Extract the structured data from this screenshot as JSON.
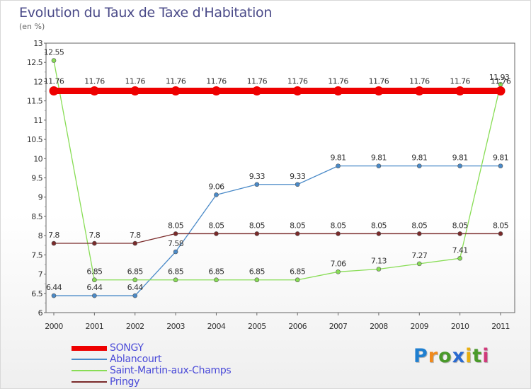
{
  "title": "Evolution du Taux de Taxe d'Habitation",
  "unit_label": "(en %)",
  "logo": {
    "text": "Proxiti",
    "letter_colors": [
      "#1f7fd0",
      "#f08a1c",
      "#4a9a2a",
      "#2a6ad0",
      "#e8ae10",
      "#4a9a2a",
      "#d03a7a"
    ]
  },
  "chart_data": {
    "type": "line",
    "x": [
      "2000",
      "2001",
      "2002",
      "2003",
      "2004",
      "2005",
      "2006",
      "2007",
      "2008",
      "2009",
      "2010",
      "2011"
    ],
    "ylim": [
      6,
      13
    ],
    "yticks": [
      "6",
      "6.5",
      "7",
      "7.5",
      "8",
      "8.5",
      "9",
      "9.5",
      "10",
      "10.5",
      "11",
      "11.5",
      "12",
      "12.5",
      "13"
    ],
    "grid": false,
    "legend_position": "bottom-left",
    "series": [
      {
        "name": "SONGY",
        "color": "#ee0000",
        "values": [
          11.76,
          11.76,
          11.76,
          11.76,
          11.76,
          11.76,
          11.76,
          11.76,
          11.76,
          11.76,
          11.76,
          11.76
        ],
        "labels": [
          "11.76",
          "11.76",
          "11.76",
          "11.76",
          "11.76",
          "11.76",
          "11.76",
          "11.76",
          "11.76",
          "11.76",
          "11.76",
          "11.76"
        ]
      },
      {
        "name": "Ablancourt",
        "color": "#4a8ac8",
        "values": [
          6.44,
          6.44,
          6.44,
          7.58,
          9.06,
          9.33,
          9.33,
          9.81,
          9.81,
          9.81,
          9.81,
          9.81
        ],
        "labels": [
          "6.44",
          "6.44",
          "6.44",
          "7.58",
          "9.06",
          "9.33",
          "9.33",
          "9.81",
          "9.81",
          "9.81",
          "9.81",
          "9.81"
        ]
      },
      {
        "name": "Saint-Martin-aux-Champs",
        "color": "#88dd55",
        "values": [
          12.55,
          6.85,
          6.85,
          6.85,
          6.85,
          6.85,
          6.85,
          7.06,
          7.13,
          7.27,
          7.41,
          11.93
        ],
        "labels": [
          "12.55",
          "6.85",
          "6.85",
          "6.85",
          "6.85",
          "6.85",
          "6.85",
          "7.06",
          "7.13",
          "7.27",
          "7.41",
          "11.93"
        ]
      },
      {
        "name": "Pringy",
        "color": "#7a2a2a",
        "values": [
          7.8,
          7.8,
          7.8,
          8.05,
          8.05,
          8.05,
          8.05,
          8.05,
          8.05,
          8.05,
          8.05,
          8.05
        ],
        "labels": [
          "7.8",
          "7.8",
          "7.8",
          "8.05",
          "8.05",
          "8.05",
          "8.05",
          "8.05",
          "8.05",
          "8.05",
          "8.05",
          "8.05"
        ]
      }
    ]
  }
}
